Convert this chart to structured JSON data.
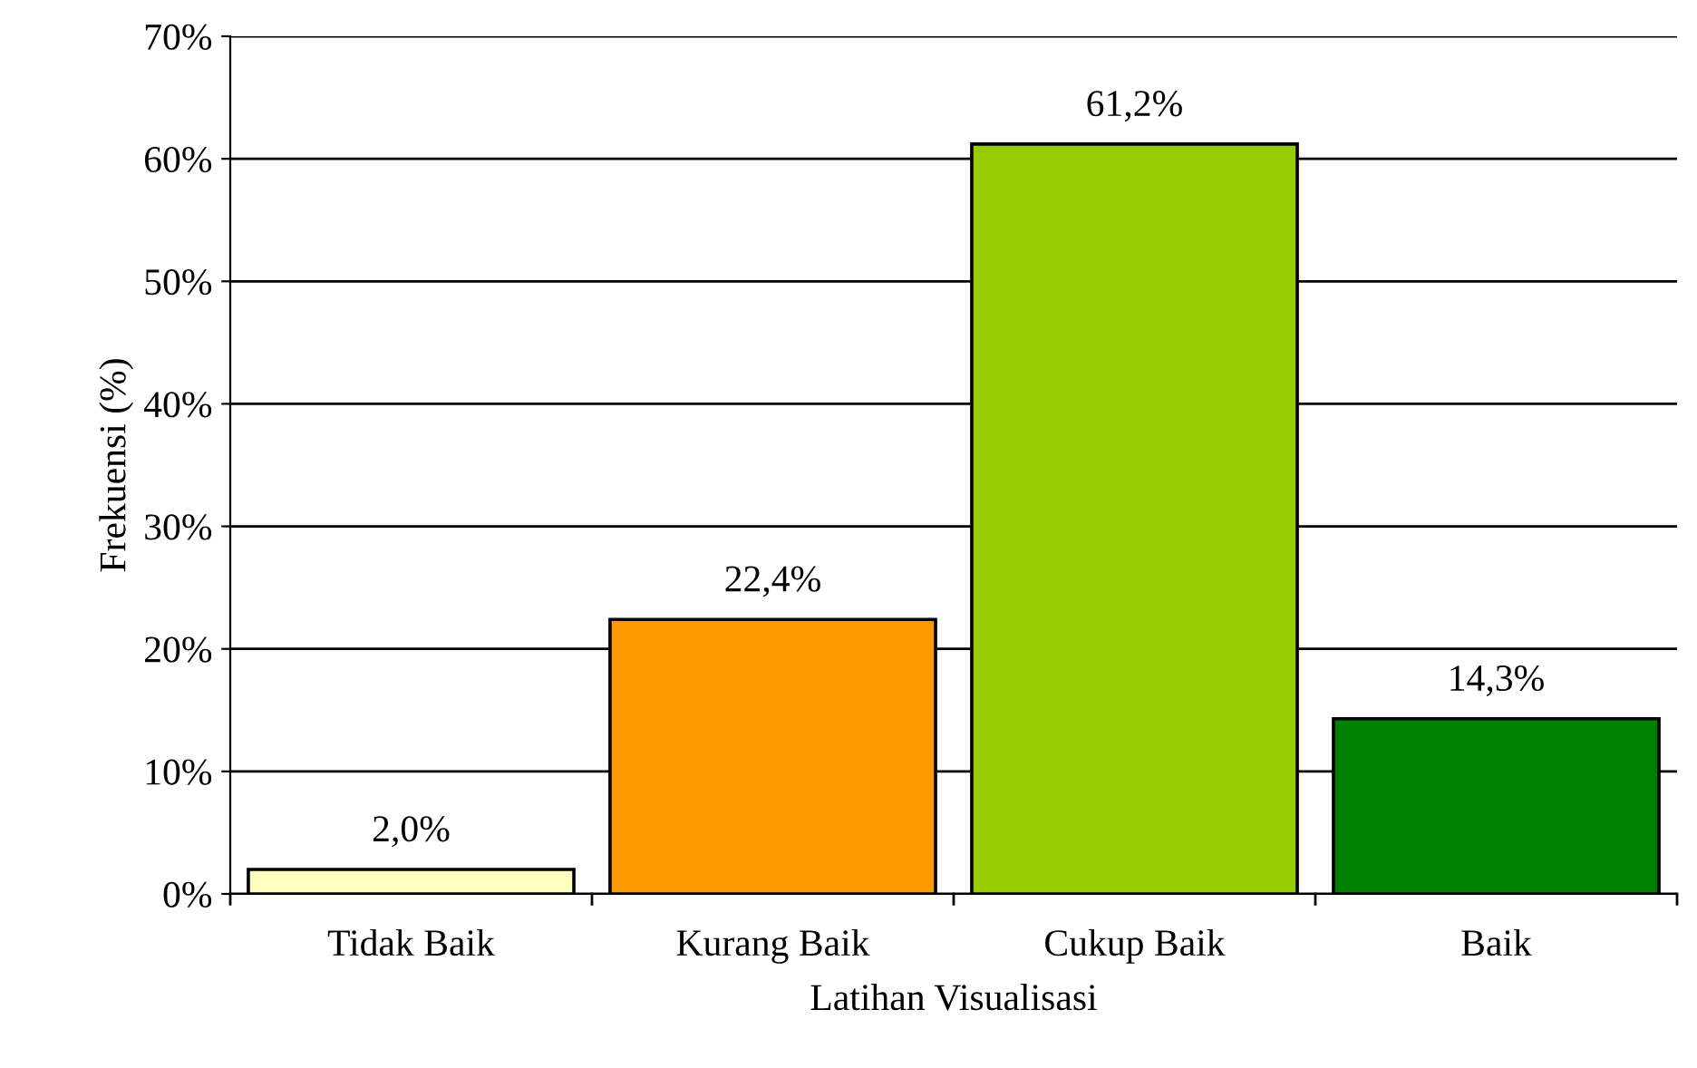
{
  "chart_data": {
    "type": "bar",
    "xlabel": "Latihan Visualisasi",
    "ylabel": "Frekuensi (%)",
    "categories": [
      "Tidak Baik",
      "Kurang Baik",
      "Cukup Baik",
      "Baik"
    ],
    "values": [
      2.0,
      22.4,
      61.2,
      14.3
    ],
    "colors": [
      "#ffffc0",
      "#ff9900",
      "#99cc00",
      "#008000"
    ],
    "value_labels": [
      "2,0%",
      "22,4%",
      "61,2%",
      "14,3%"
    ],
    "ylim": [
      0,
      70
    ],
    "yticks": [
      {
        "value": 0,
        "label": "0%"
      },
      {
        "value": 10,
        "label": "10%"
      },
      {
        "value": 20,
        "label": "20%"
      },
      {
        "value": 30,
        "label": "30%"
      },
      {
        "value": 40,
        "label": "40%"
      },
      {
        "value": 50,
        "label": "50%"
      },
      {
        "value": 60,
        "label": "60%"
      },
      {
        "value": 70,
        "label": "70%"
      }
    ],
    "grid": "y",
    "legend": false
  }
}
